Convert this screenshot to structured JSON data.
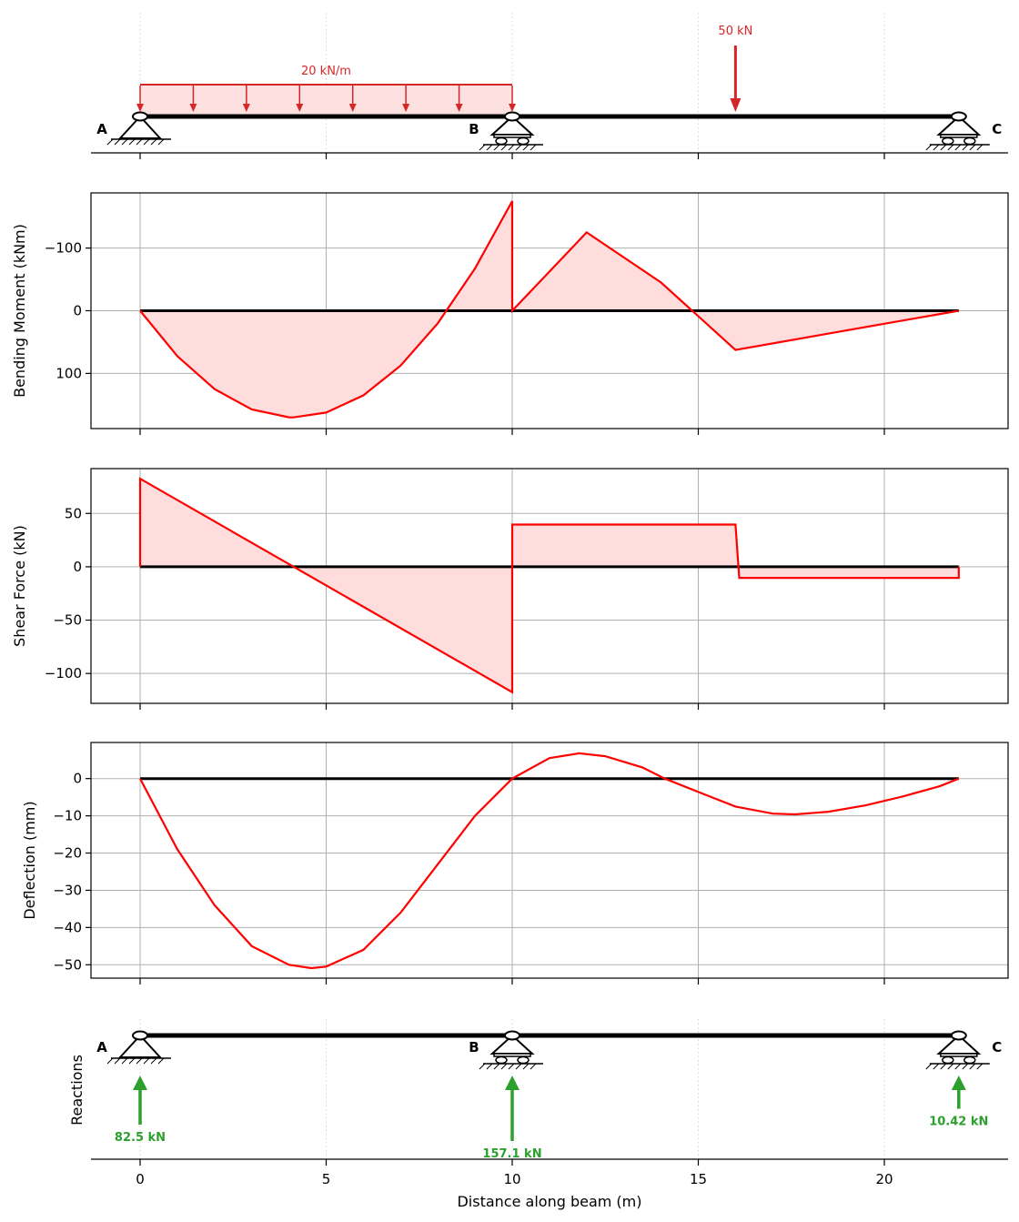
{
  "chart_data": [
    {
      "type": "diagram",
      "panel": "loading",
      "supports": [
        {
          "label": "A",
          "x": 0,
          "kind": "pin"
        },
        {
          "label": "B",
          "x": 10,
          "kind": "roller"
        },
        {
          "label": "C",
          "x": 22,
          "kind": "roller"
        }
      ],
      "distributed_load": {
        "label": "20 kN/m",
        "x_start": 0,
        "x_end": 10
      },
      "point_load": {
        "label": "50 kN",
        "x": 16
      },
      "xlim": [
        -1.3,
        23.3
      ]
    },
    {
      "type": "area",
      "panel": "moment",
      "ylabel": "Bending Moment (kNm)",
      "yticks": [
        -100,
        0,
        100
      ],
      "ylim": [
        188,
        -188
      ],
      "inverted_y": true,
      "grid": true,
      "series": [
        {
          "name": "",
          "x": [
            0,
            1,
            2,
            3,
            4,
            4.125,
            5,
            6,
            7,
            8,
            9,
            10,
            10,
            12,
            14,
            16,
            18,
            20,
            22
          ],
          "values": [
            0,
            72.5,
            125,
            157.5,
            170,
            170.2,
            162.5,
            135,
            87.5,
            20,
            -67.5,
            -175,
            0,
            -125,
            -45,
            62.5,
            41.7,
            20.8,
            0
          ]
        }
      ]
    },
    {
      "type": "area",
      "panel": "shear",
      "ylabel": "Shear Force (kN)",
      "yticks": [
        50,
        0,
        -50,
        -100
      ],
      "ylim": [
        -128,
        92
      ],
      "grid": true,
      "series": [
        {
          "name": "",
          "x": [
            0,
            0,
            10,
            10,
            16,
            16.1,
            22,
            22
          ],
          "values": [
            0,
            82.5,
            -117.5,
            39.6,
            39.6,
            -10.4,
            -10.4,
            0
          ]
        }
      ]
    },
    {
      "type": "line",
      "panel": "deflection",
      "ylabel": "Deflection (mm)",
      "xlabel": "",
      "yticks": [
        0,
        -10,
        -20,
        -30,
        -40,
        -50
      ],
      "ylim": [
        -53.6,
        9.7
      ],
      "grid": true,
      "series": [
        {
          "name": "",
          "x": [
            0,
            1,
            2,
            3,
            4,
            4.6,
            5,
            6,
            7,
            8,
            9,
            10,
            11,
            11.8,
            12.5,
            13.5,
            14.1,
            15,
            16,
            17,
            17.6,
            18.5,
            19.5,
            20.5,
            21.5,
            22
          ],
          "values": [
            0,
            -19,
            -34,
            -45,
            -50,
            -50.9,
            -50.5,
            -46,
            -36,
            -23,
            -10,
            0,
            5.5,
            6.8,
            6,
            3,
            0,
            -3.6,
            -7.5,
            -9.4,
            -9.6,
            -8.9,
            -7.2,
            -4.8,
            -2,
            0
          ]
        }
      ]
    },
    {
      "type": "diagram",
      "panel": "reactions",
      "ylabel": "Reactions",
      "xlabel": "Distance along beam (m)",
      "xticks": [
        0,
        5,
        10,
        15,
        20
      ],
      "supports": [
        {
          "label": "A",
          "x": 0,
          "kind": "pin"
        },
        {
          "label": "B",
          "x": 10,
          "kind": "roller"
        },
        {
          "label": "C",
          "x": 22,
          "kind": "roller"
        }
      ],
      "reactions": [
        {
          "label": "82.5 kN",
          "x": 0,
          "value": 82.5
        },
        {
          "label": "157.1 kN",
          "x": 10,
          "value": 157.1
        },
        {
          "label": "10.42 kN",
          "x": 22,
          "value": 10.42
        }
      ]
    }
  ],
  "colors": {
    "diagram_line": "#ff0000",
    "diagram_fill": "#ffdddd",
    "load": "#d62728",
    "load_fill": "#fde0e0",
    "reaction": "#2ca02c",
    "grid": "#b0b0b0",
    "beam": "#000000"
  }
}
